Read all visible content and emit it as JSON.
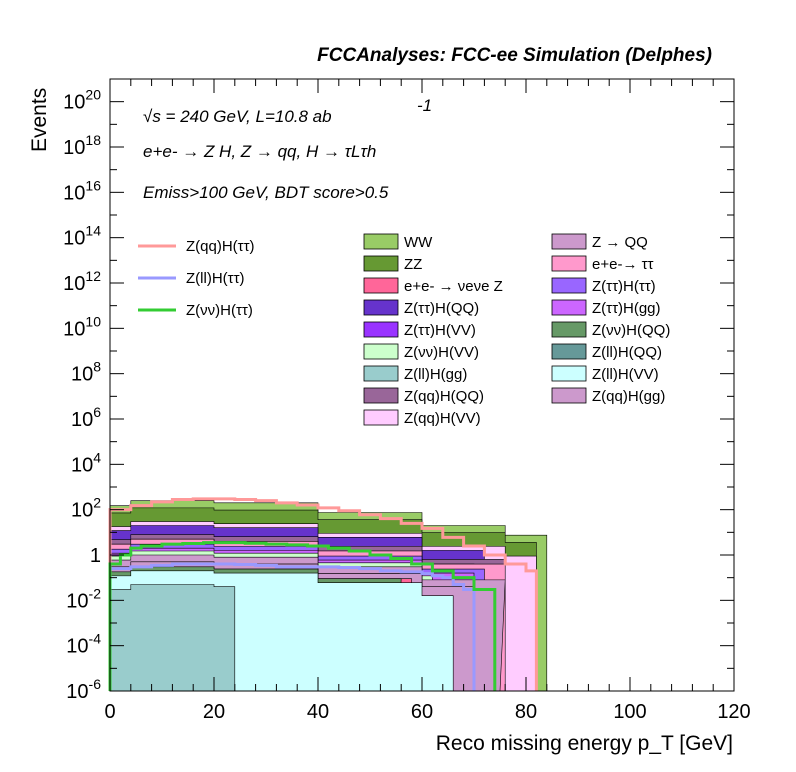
{
  "chart_data": {
    "type": "histogram",
    "title": "FCCAnalyses: FCC-ee Simulation (Delphes)",
    "xlabel": "Reco missing energy p_T [GeV]",
    "ylabel": "Events",
    "xlim": [
      0,
      120
    ],
    "ylim_log10": [
      -6,
      21
    ],
    "y_scale": "log",
    "x_ticks": [
      "0",
      "20",
      "40",
      "60",
      "80",
      "100",
      "120"
    ],
    "y_ticks": [
      {
        "base": "10",
        "exp": "20",
        "p": 20
      },
      {
        "base": "10",
        "exp": "18",
        "p": 18
      },
      {
        "base": "10",
        "exp": "16",
        "p": 16
      },
      {
        "base": "10",
        "exp": "14",
        "p": 14
      },
      {
        "base": "10",
        "exp": "12",
        "p": 12
      },
      {
        "base": "10",
        "exp": "10",
        "p": 10
      },
      {
        "base": "10",
        "exp": "8",
        "p": 8
      },
      {
        "base": "10",
        "exp": "6",
        "p": 6
      },
      {
        "base": "10",
        "exp": "4",
        "p": 4
      },
      {
        "base": "10",
        "exp": "2",
        "p": 2
      },
      {
        "base": "1",
        "exp": "",
        "p": 0
      },
      {
        "base": "10",
        "exp": "-2",
        "p": -2
      },
      {
        "base": "10",
        "exp": "-4",
        "p": -4
      },
      {
        "base": "10",
        "exp": "-6",
        "p": -6
      }
    ],
    "annotations": {
      "energy_line": "√s = 240 GeV, L=10.8 ab",
      "energy_sup": "-1",
      "process_line": "e+e- → Z H, Z → qq, H → τLτh",
      "cuts_line": "Emiss>100 GeV, BDT score>0.5"
    },
    "legend_position": "top",
    "stacked_backgrounds": [
      {
        "name": "WW",
        "color": "#99cc66",
        "approx_peak": 250
      },
      {
        "name": "ZZ",
        "color": "#669933",
        "approx_peak": 120
      },
      {
        "name": "e+e- → νeνe Z",
        "color": "#ff6699",
        "approx_peak": 0.3
      },
      {
        "name": "Z(ττ)H(QQ)",
        "color": "#6633cc",
        "approx_peak": 20
      },
      {
        "name": "Z(ττ)H(VV)",
        "color": "#9933ff",
        "approx_peak": 5
      },
      {
        "name": "Z(νν)H(VV)",
        "color": "#ccffcc",
        "approx_peak": 1.5
      },
      {
        "name": "Z(ll)H(gg)",
        "color": "#99cccc",
        "approx_peak": 0.05
      },
      {
        "name": "Z(qq)H(QQ)",
        "color": "#996699",
        "approx_peak": 8
      },
      {
        "name": "Z(qq)H(VV)",
        "color": "#ffccff",
        "approx_peak": 30
      },
      {
        "name": "Z → QQ",
        "color": "#cc99cc",
        "approx_peak": 1
      },
      {
        "name": "e+e-→ ττ",
        "color": "#ff99cc",
        "approx_peak": 5
      },
      {
        "name": "Z(ττ)H(ττ)",
        "color": "#9966ff",
        "approx_peak": 3
      },
      {
        "name": "Z(ττ)H(gg)",
        "color": "#cc66ff",
        "approx_peak": 2
      },
      {
        "name": "Z(νν)H(QQ)",
        "color": "#669966",
        "approx_peak": 0.3
      },
      {
        "name": "Z(ll)H(QQ)",
        "color": "#669999",
        "approx_peak": 0.5
      },
      {
        "name": "Z(ll)H(VV)",
        "color": "#ccffff",
        "approx_peak": 0.2
      },
      {
        "name": "Z(qq)H(gg)",
        "color": "#cc99cc",
        "approx_peak": 0.5
      }
    ],
    "signal_lines": [
      {
        "name": "Z(qq)H(ττ)",
        "color": "#ff9999",
        "x": [
          0,
          4,
          8,
          12,
          16,
          20,
          24,
          28,
          32,
          36,
          40,
          44,
          48,
          52,
          56,
          60,
          64,
          68,
          72,
          76,
          80,
          82
        ],
        "y": [
          100,
          150,
          220,
          280,
          300,
          300,
          280,
          250,
          200,
          160,
          120,
          90,
          60,
          40,
          25,
          15,
          6,
          2.5,
          1.0,
          0.4,
          0.2,
          0.2
        ]
      },
      {
        "name": "Z(ll)H(ττ)",
        "color": "#9999ff",
        "x": [
          0,
          4,
          8,
          12,
          16,
          20,
          24,
          28,
          32,
          36,
          40,
          44,
          48,
          52,
          56,
          60,
          62,
          64,
          66,
          68,
          70
        ],
        "y": [
          0.25,
          0.3,
          0.35,
          0.4,
          0.4,
          0.4,
          0.38,
          0.35,
          0.3,
          0.3,
          0.3,
          0.28,
          0.25,
          0.2,
          0.18,
          0.15,
          0.12,
          0.1,
          0.05,
          0.03,
          0.03
        ]
      },
      {
        "name": "Z(νν)H(ττ)",
        "color": "#33cc33",
        "x": [
          0,
          2,
          4,
          6,
          10,
          14,
          18,
          22,
          26,
          30,
          34,
          38,
          42,
          46,
          50,
          54,
          58,
          62,
          66,
          70,
          74
        ],
        "y": [
          0.4,
          1.0,
          2.0,
          2.5,
          3.0,
          3.2,
          3.5,
          3.5,
          3.3,
          3.0,
          2.8,
          2.5,
          2.0,
          1.5,
          1.0,
          0.7,
          0.4,
          0.2,
          0.1,
          0.03,
          0.03
        ]
      }
    ]
  }
}
